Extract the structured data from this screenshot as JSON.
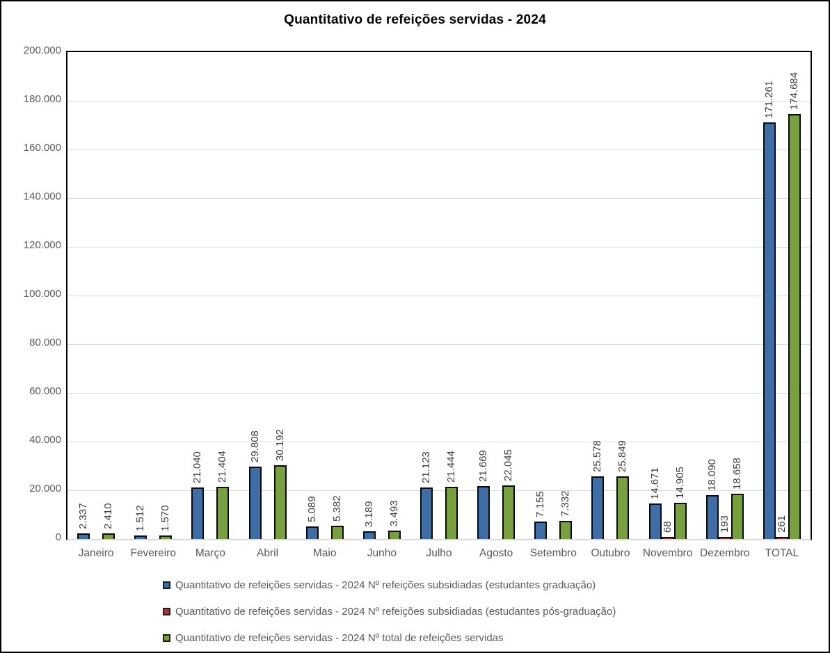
{
  "chart_data": {
    "type": "bar",
    "title": "Quantitativo de refeições servidas - 2024",
    "categories": [
      "Janeiro",
      "Fevereiro",
      "Março",
      "Abril",
      "Maio",
      "Junho",
      "Julho",
      "Agosto",
      "Setembro",
      "Outubro",
      "Novembro",
      "Dezembro",
      "TOTAL"
    ],
    "series": [
      {
        "name": "Quantitativo de refeições servidas - 2024 Nº refeições subsidiadas (estudantes graduação)",
        "color": "#3E6EA5",
        "values": [
          2337,
          1512,
          21040,
          29808,
          5089,
          3189,
          21123,
          21669,
          7155,
          25578,
          14671,
          18090,
          171261
        ],
        "value_labels": [
          "2.337",
          "1.512",
          "21.040",
          "29.808",
          "5.089",
          "3.189",
          "21.123",
          "21.669",
          "7.155",
          "25.578",
          "14.671",
          "18.090",
          "171.261"
        ]
      },
      {
        "name": "Quantitativo de refeições servidas - 2024 Nº refeições subsidiadas (estudantes pós-graduação)",
        "color": "#9E3B38",
        "values": [
          null,
          null,
          null,
          null,
          null,
          null,
          null,
          null,
          null,
          null,
          68,
          193,
          261
        ],
        "value_labels": [
          "",
          "",
          "",
          "",
          "",
          "",
          "",
          "",
          "",
          "",
          "68",
          "193",
          "261"
        ]
      },
      {
        "name": "Quantitativo de refeições servidas - 2024 Nº total de refeições servidas",
        "color": "#79A03E",
        "values": [
          2410,
          1570,
          21404,
          30192,
          5382,
          3493,
          21444,
          22045,
          7332,
          25849,
          14905,
          18658,
          174684
        ],
        "value_labels": [
          "2.410",
          "1.570",
          "21.404",
          "30.192",
          "5.382",
          "3.493",
          "21.444",
          "22.045",
          "7.332",
          "25.849",
          "14.905",
          "18.658",
          "174.684"
        ]
      }
    ],
    "ylim": [
      0,
      200000
    ],
    "ytick_labels": [
      "200.000",
      "180.000",
      "160.000",
      "140.000",
      "120.000",
      "100.000",
      "80.000",
      "60.000",
      "40.000",
      "20.000",
      "0"
    ],
    "grid": true,
    "legend_position": "bottom",
    "colors": {
      "grid": "#D9D9D9",
      "axis_text": "#595959",
      "data_label": "#3F3F3F",
      "bar_border": "#0A0A0A",
      "plot_border": "#000000",
      "background": "#FFFFFF"
    }
  }
}
